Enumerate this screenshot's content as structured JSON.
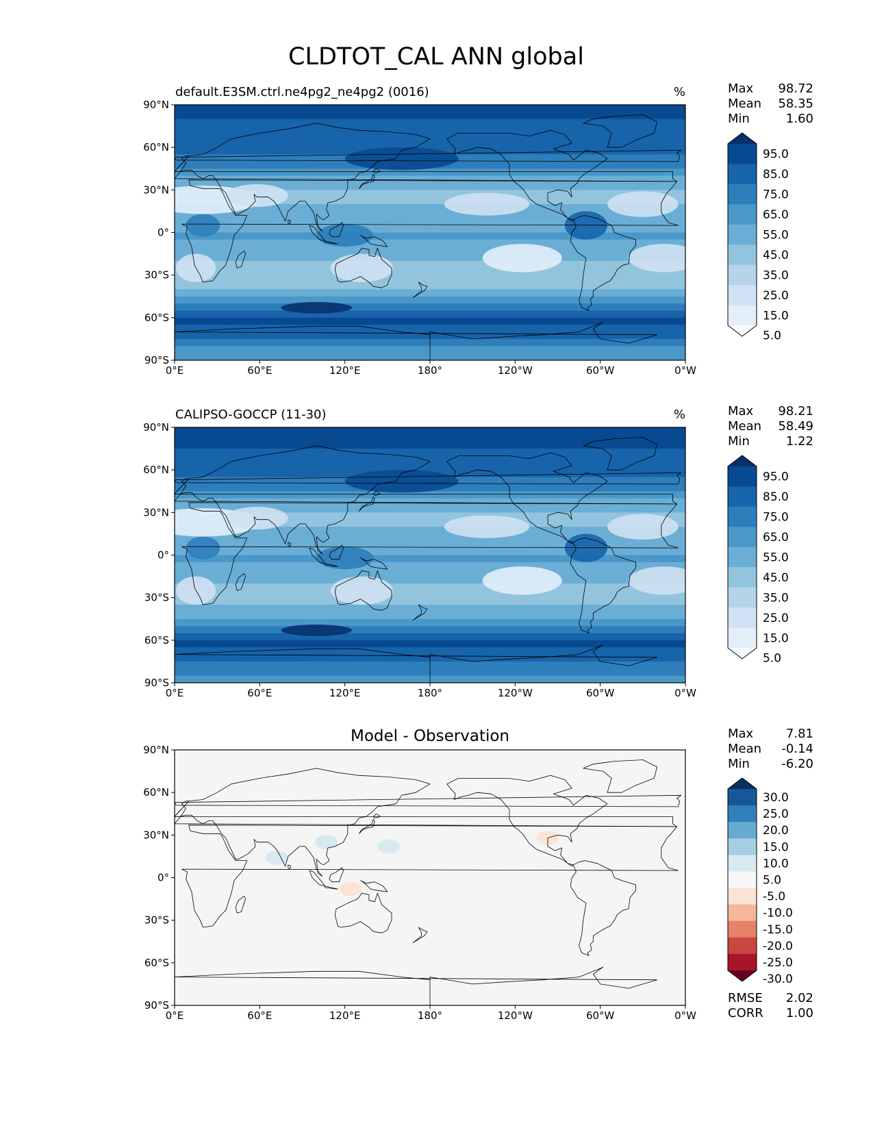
{
  "figure": {
    "title": "CLDTOT_CAL ANN global",
    "projection": "PlateCarree, central longitude 180",
    "x_ticks": [
      "0°E",
      "60°E",
      "120°E",
      "180°",
      "120°W",
      "60°W",
      "0°W"
    ],
    "y_ticks": [
      "90°N",
      "60°N",
      "30°N",
      "0°",
      "30°S",
      "60°S",
      "90°S"
    ]
  },
  "colors": {
    "seq": [
      "#f7fbff",
      "#e3eef9",
      "#cfe1f2",
      "#b5d4e9",
      "#93c4de",
      "#6aaed6",
      "#4a98c9",
      "#2e7ebc",
      "#1764ab",
      "#084a91",
      "#08306b"
    ],
    "div": [
      "#67001f",
      "#a81529",
      "#c94741",
      "#e58267",
      "#f5b69b",
      "#fbe3d5",
      "#f7f7f7",
      "#d9e9f1",
      "#a5cee3",
      "#68abd0",
      "#3280b9",
      "#175797",
      "#053061"
    ],
    "diff_bg": "#f5f5f5",
    "coast": "#000000"
  },
  "chart_data": [
    {
      "type": "heatmap",
      "name": "model",
      "title_left": "default.E3SM.ctrl.ne4pg2_ne4pg2 (0016)",
      "title_right": "%",
      "stats": [
        {
          "label": "Max",
          "value": "98.72"
        },
        {
          "label": "Mean",
          "value": "58.35"
        },
        {
          "label": "Min",
          "value": "1.60"
        }
      ],
      "colorbar_labels": [
        "95.0",
        "85.0",
        "75.0",
        "65.0",
        "55.0",
        "45.0",
        "35.0",
        "25.0",
        "15.0",
        "5.0"
      ],
      "colorbar_levels": [
        0,
        5,
        15,
        25,
        35,
        45,
        55,
        65,
        75,
        85,
        95,
        100
      ],
      "xlim": [
        0,
        360
      ],
      "ylim": [
        -90,
        90
      ],
      "zonal_mean_approx": [
        {
          "lat": 90,
          "value": 88
        },
        {
          "lat": 60,
          "value": 78
        },
        {
          "lat": 30,
          "value": 40
        },
        {
          "lat": 0,
          "value": 55
        },
        {
          "lat": -30,
          "value": 35
        },
        {
          "lat": -60,
          "value": 88
        },
        {
          "lat": -90,
          "value": 50
        }
      ]
    },
    {
      "type": "heatmap",
      "name": "observation",
      "title_left": "CALIPSO-GOCCP (11-30)",
      "title_right": "%",
      "stats": [
        {
          "label": "Max",
          "value": "98.21"
        },
        {
          "label": "Mean",
          "value": "58.49"
        },
        {
          "label": "Min",
          "value": "1.22"
        }
      ],
      "colorbar_labels": [
        "95.0",
        "85.0",
        "75.0",
        "65.0",
        "55.0",
        "45.0",
        "35.0",
        "25.0",
        "15.0",
        "5.0"
      ],
      "colorbar_levels": [
        0,
        5,
        15,
        25,
        35,
        45,
        55,
        65,
        75,
        85,
        95,
        100
      ],
      "xlim": [
        0,
        360
      ],
      "ylim": [
        -90,
        90
      ],
      "zonal_mean_approx": [
        {
          "lat": 90,
          "value": 88
        },
        {
          "lat": 60,
          "value": 80
        },
        {
          "lat": 30,
          "value": 42
        },
        {
          "lat": 0,
          "value": 55
        },
        {
          "lat": -30,
          "value": 38
        },
        {
          "lat": -60,
          "value": 88
        },
        {
          "lat": -90,
          "value": 55
        }
      ]
    },
    {
      "type": "heatmap",
      "name": "difference",
      "title_center": "Model - Observation",
      "stats": [
        {
          "label": "Max",
          "value": "7.81"
        },
        {
          "label": "Mean",
          "value": "-0.14"
        },
        {
          "label": "Min",
          "value": "-6.20"
        }
      ],
      "colorbar_labels": [
        "30.0",
        "25.0",
        "20.0",
        "15.0",
        "10.0",
        "5.0",
        "-5.0",
        "-10.0",
        "-15.0",
        "-20.0",
        "-25.0",
        "-30.0"
      ],
      "colorbar_levels": [
        -30,
        -25,
        -20,
        -15,
        -10,
        -5,
        5,
        10,
        15,
        20,
        25,
        30
      ],
      "xlim": [
        0,
        360
      ],
      "ylim": [
        -90,
        90
      ],
      "metrics": [
        {
          "label": "RMSE",
          "value": "2.02"
        },
        {
          "label": "CORR",
          "value": "1.00"
        }
      ],
      "anomalies": [
        {
          "lon": 107,
          "lat": 25,
          "value": 7
        },
        {
          "lon": 151,
          "lat": 22,
          "value": 7
        },
        {
          "lon": 72,
          "lat": 14,
          "value": 6
        },
        {
          "lon": 124,
          "lat": -8,
          "value": -6
        },
        {
          "lon": 263,
          "lat": 28,
          "value": -5
        }
      ]
    }
  ]
}
